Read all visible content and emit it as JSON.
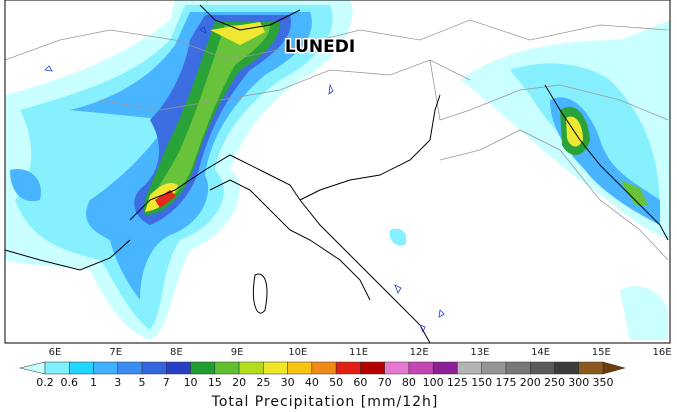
{
  "map": {
    "label": "LUNEDI",
    "longitudes": [
      "6E",
      "7E",
      "8E",
      "9E",
      "10E",
      "11E",
      "12E",
      "13E",
      "14E",
      "15E",
      "16E"
    ]
  },
  "colorbar": {
    "title": "Total Precipitation [mm/12h]",
    "levels": [
      0.2,
      0.6,
      1,
      3,
      5,
      7,
      10,
      15,
      20,
      25,
      30,
      40,
      50,
      60,
      70,
      80,
      100,
      125,
      150,
      175,
      200,
      250,
      300,
      350
    ],
    "colors": [
      "#c8ffff",
      "#80f0ff",
      "#20d8ff",
      "#40b0ff",
      "#3a8cf0",
      "#3266e0",
      "#2840c8",
      "#1e9e2e",
      "#60c030",
      "#b4dc1e",
      "#f0e628",
      "#f8c414",
      "#f08a14",
      "#e01e14",
      "#b40000",
      "#e678d2",
      "#c446b4",
      "#8c1e96",
      "#b4b4b4",
      "#969696",
      "#787878",
      "#5a5a5a",
      "#3c3c3c",
      "#8c5a1e",
      "#6e3c0a"
    ]
  }
}
